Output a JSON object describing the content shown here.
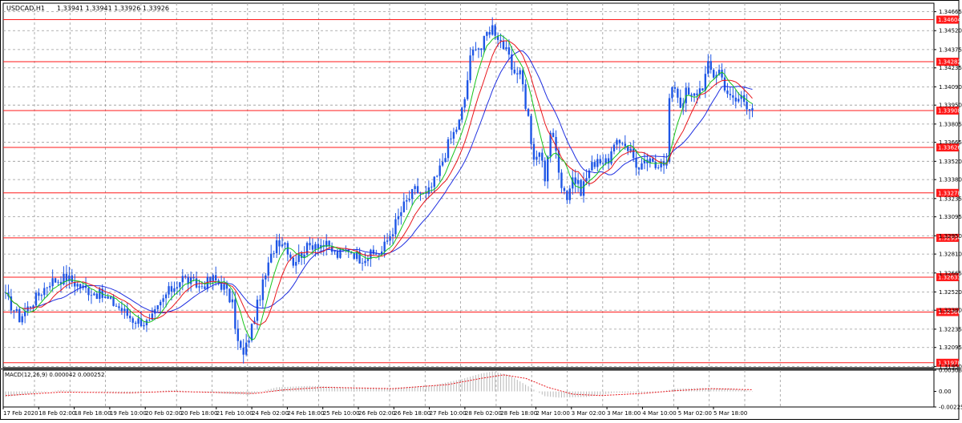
{
  "header": {
    "symbol_label": "USDCAD,H1",
    "quote": "1.33941 1.33941 1.33926 1.33926"
  },
  "macd_header": {
    "label": "MACD(12,26,9) 0.000042 0.000252"
  },
  "colors": {
    "background": "#ffffff",
    "candle": "#1e56e6",
    "ma_fast": "#17c41b",
    "ma_mid": "#e8151b",
    "ma_slow": "#1f2fe0",
    "level_line": "#ff1a1a",
    "level_tag_bg": "#ff1a1a",
    "level_tag_text": "#ffffff",
    "grid": "#9a9a9a",
    "macd_hist": "#b9b9b9",
    "macd_signal": "#e8151b"
  },
  "chart_data": {
    "type": "line",
    "title": "USDCAD,H1",
    "timeframe": "H1",
    "x_labels": [
      "17 Feb 2020",
      "18 Feb 02:00",
      "18 Feb 18:00",
      "19 Feb 10:00",
      "20 Feb 02:00",
      "20 Feb 18:00",
      "21 Feb 10:00",
      "24 Feb 02:00",
      "24 Feb 18:00",
      "25 Feb 10:00",
      "26 Feb 02:00",
      "26 Feb 18:00",
      "27 Feb 10:00",
      "28 Feb 02:00",
      "28 Feb 18:00",
      "2 Mar 10:00",
      "3 Mar 02:00",
      "3 Mar 18:00",
      "4 Mar 10:00",
      "5 Mar 02:00",
      "5 Mar 18:00"
    ],
    "price_ticks": [
      "1.34665",
      "1.34520",
      "1.34375",
      "1.34235",
      "1.34090",
      "1.33950",
      "1.33805",
      "1.33665",
      "1.33520",
      "1.33380",
      "1.33235",
      "1.33095",
      "1.32950",
      "1.32810",
      "1.32665",
      "1.32520",
      "1.32380",
      "1.32235",
      "1.32095",
      "1.31950"
    ],
    "ylim": [
      1.3194,
      1.3473
    ],
    "horizontal_levels": [
      "1.34604",
      "1.34282",
      "1.33908",
      "1.33626",
      "1.33278",
      "1.32934",
      "1.32633",
      "1.32366",
      "1.31978"
    ],
    "price_keypoints": [
      [
        0,
        1.3248
      ],
      [
        5,
        1.3232
      ],
      [
        10,
        1.3245
      ],
      [
        16,
        1.326
      ],
      [
        22,
        1.3263
      ],
      [
        28,
        1.3255
      ],
      [
        34,
        1.325
      ],
      [
        40,
        1.3242
      ],
      [
        46,
        1.3231
      ],
      [
        52,
        1.3228
      ],
      [
        58,
        1.325
      ],
      [
        64,
        1.3263
      ],
      [
        70,
        1.3256
      ],
      [
        75,
        1.3262
      ],
      [
        79,
        1.3256
      ],
      [
        82,
        1.3242
      ],
      [
        84,
        1.3213
      ],
      [
        86,
        1.3203
      ],
      [
        89,
        1.3225
      ],
      [
        92,
        1.325
      ],
      [
        95,
        1.3272
      ],
      [
        98,
        1.3292
      ],
      [
        101,
        1.329
      ],
      [
        104,
        1.3275
      ],
      [
        108,
        1.3284
      ],
      [
        112,
        1.329
      ],
      [
        116,
        1.3287
      ],
      [
        120,
        1.328
      ],
      [
        124,
        1.3285
      ],
      [
        128,
        1.3278
      ],
      [
        132,
        1.328
      ],
      [
        136,
        1.3283
      ],
      [
        140,
        1.33
      ],
      [
        144,
        1.3318
      ],
      [
        148,
        1.333
      ],
      [
        152,
        1.3325
      ],
      [
        156,
        1.334
      ],
      [
        160,
        1.3365
      ],
      [
        164,
        1.3382
      ],
      [
        166,
        1.34
      ],
      [
        168,
        1.343
      ],
      [
        170,
        1.3442
      ],
      [
        172,
        1.3438
      ],
      [
        174,
        1.345
      ],
      [
        176,
        1.3455
      ],
      [
        178,
        1.3448
      ],
      [
        180,
        1.344
      ],
      [
        182,
        1.343
      ],
      [
        184,
        1.3415
      ],
      [
        186,
        1.3425
      ],
      [
        188,
        1.3395
      ],
      [
        189,
        1.3385
      ],
      [
        191,
        1.335
      ],
      [
        193,
        1.336
      ],
      [
        195,
        1.334
      ],
      [
        197,
        1.3375
      ],
      [
        199,
        1.336
      ],
      [
        201,
        1.3335
      ],
      [
        203,
        1.3325
      ],
      [
        205,
        1.334
      ],
      [
        208,
        1.333
      ],
      [
        211,
        1.3345
      ],
      [
        214,
        1.3355
      ],
      [
        217,
        1.335
      ],
      [
        220,
        1.3362
      ],
      [
        223,
        1.3368
      ],
      [
        226,
        1.336
      ],
      [
        229,
        1.3345
      ],
      [
        232,
        1.3352
      ],
      [
        235,
        1.3348
      ],
      [
        237,
        1.3355
      ],
      [
        239,
        1.335
      ],
      [
        240,
        1.34
      ],
      [
        242,
        1.341
      ],
      [
        244,
        1.3395
      ],
      [
        246,
        1.3405
      ],
      [
        248,
        1.34
      ],
      [
        250,
        1.3405
      ],
      [
        252,
        1.341
      ],
      [
        254,
        1.3425
      ],
      [
        256,
        1.3418
      ],
      [
        258,
        1.3422
      ],
      [
        260,
        1.341
      ],
      [
        262,
        1.34
      ],
      [
        264,
        1.3398
      ],
      [
        266,
        1.3402
      ],
      [
        268,
        1.3396
      ],
      [
        270,
        1.3393
      ]
    ],
    "macd": {
      "label": "MACD(12,26,9)",
      "main": "0.000042",
      "signal": "0.000252",
      "ticks": [
        "0.003085",
        "0.00",
        "-0.002259"
      ],
      "ylim": [
        -0.00226,
        0.00309
      ],
      "hist_keypoints": [
        [
          0,
          -0.0008
        ],
        [
          20,
          0.0002
        ],
        [
          45,
          -0.0003
        ],
        [
          60,
          0.0002
        ],
        [
          82,
          -0.0004
        ],
        [
          88,
          -0.0005
        ],
        [
          98,
          0.0006
        ],
        [
          110,
          0.0008
        ],
        [
          130,
          0.0005
        ],
        [
          140,
          0.0005
        ],
        [
          155,
          0.0009
        ],
        [
          165,
          0.0018
        ],
        [
          172,
          0.0026
        ],
        [
          176,
          0.0029
        ],
        [
          182,
          0.0024
        ],
        [
          190,
          0.0005
        ],
        [
          195,
          -0.0007
        ],
        [
          200,
          -0.0009
        ],
        [
          210,
          -0.0008
        ],
        [
          220,
          -0.0002
        ],
        [
          235,
          -0.0002
        ],
        [
          242,
          0.0004
        ],
        [
          252,
          0.0005
        ],
        [
          262,
          0.0004
        ],
        [
          270,
          4e-05
        ]
      ],
      "signal_keypoints": [
        [
          0,
          -0.0006
        ],
        [
          20,
          -0.0001
        ],
        [
          45,
          -0.0002
        ],
        [
          60,
          0.0
        ],
        [
          82,
          -0.0002
        ],
        [
          90,
          -0.0003
        ],
        [
          100,
          0.0002
        ],
        [
          115,
          0.0006
        ],
        [
          140,
          0.0004
        ],
        [
          160,
          0.001
        ],
        [
          172,
          0.0019
        ],
        [
          180,
          0.0024
        ],
        [
          188,
          0.0019
        ],
        [
          196,
          0.0006
        ],
        [
          205,
          -0.0004
        ],
        [
          215,
          -0.0006
        ],
        [
          230,
          -0.0003
        ],
        [
          242,
          0.0001
        ],
        [
          255,
          0.0004
        ],
        [
          270,
          0.00025
        ]
      ]
    }
  }
}
